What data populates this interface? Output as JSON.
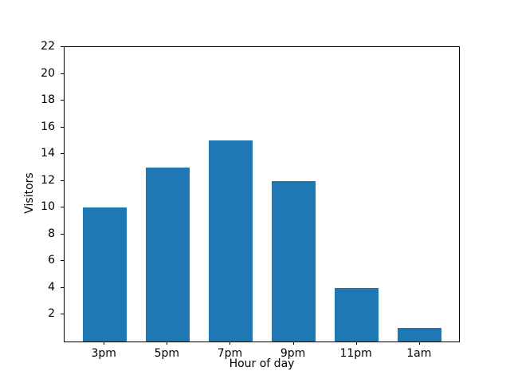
{
  "figure": {
    "background": "#ffffff",
    "axis_color": "#000000"
  },
  "chart_data": {
    "type": "bar",
    "categories": [
      "3pm",
      "5pm",
      "7pm",
      "9pm",
      "11pm",
      "1am"
    ],
    "values": [
      10,
      13,
      15,
      12,
      4,
      1
    ],
    "title": "",
    "xlabel": "Hour of day",
    "ylabel": "Visitors",
    "ylim": [
      0,
      22
    ],
    "yticks": [
      2,
      4,
      6,
      8,
      10,
      12,
      14,
      16,
      18,
      20,
      22
    ],
    "bar_color": "#1f77b4",
    "bar_width_ratio": 0.7,
    "grid": false,
    "legend_position": "none"
  }
}
